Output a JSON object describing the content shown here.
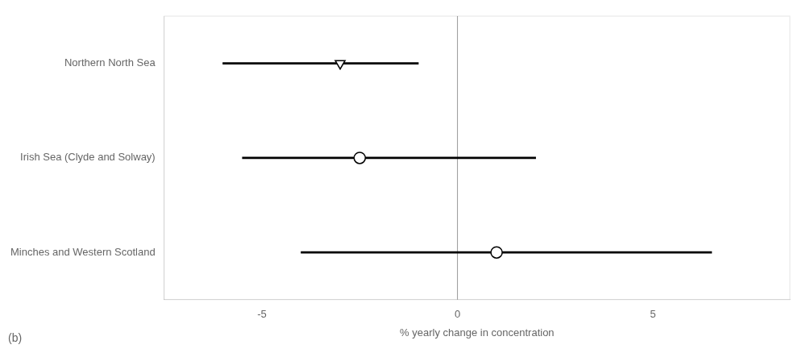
{
  "chart_data": {
    "type": "forest",
    "categories": [
      "Northern North Sea",
      "Irish Sea (Clyde and Solway)",
      "Minches and Western Scotland"
    ],
    "values": [
      -3.0,
      -2.5,
      1.0
    ],
    "ci_low": [
      -6.0,
      -5.5,
      -4.0
    ],
    "ci_high": [
      -1.0,
      2.0,
      6.5
    ],
    "marker": [
      "triangle_down",
      "circle",
      "circle"
    ],
    "color": "#000000",
    "xlabel": "% yearly change in concentration",
    "annotation": "(b)",
    "xlim": [
      -7.5,
      8.5
    ],
    "xticks": [
      -5,
      0,
      5
    ],
    "reference_line": {
      "x": 0,
      "color": "#999999"
    },
    "grid": false
  }
}
